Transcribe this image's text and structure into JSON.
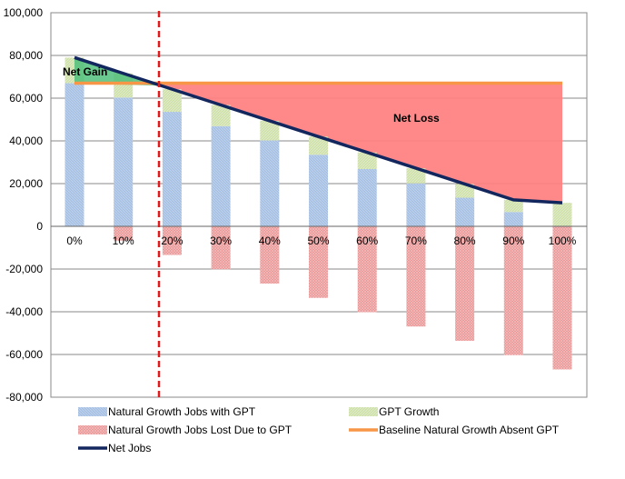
{
  "chart_data": {
    "type": "bar",
    "categories": [
      "0%",
      "10%",
      "20%",
      "30%",
      "40%",
      "50%",
      "60%",
      "70%",
      "80%",
      "90%",
      "100%"
    ],
    "ylim": [
      -80000,
      100000
    ],
    "ytick_labels": [
      "100,000",
      "80,000",
      "60,000",
      "40,000",
      "20,000",
      "0",
      "-20,000",
      "-40,000",
      "-60,000",
      "-80,000"
    ],
    "series": [
      {
        "name": "Natural Growth Jobs with GPT",
        "values": [
          67000,
          60300,
          53600,
          46900,
          40200,
          33500,
          26800,
          20100,
          13400,
          6700,
          0
        ],
        "color": "#9db8de"
      },
      {
        "name": "GPT Growth",
        "values": [
          12000,
          11300,
          10600,
          9900,
          9200,
          8500,
          7800,
          7100,
          6400,
          5700,
          11000
        ],
        "color": "#c8dba0"
      },
      {
        "name": "Natural Growth Jobs Lost Due to GPT",
        "values": [
          0,
          -6700,
          -13400,
          -20100,
          -26800,
          -33500,
          -40200,
          -46900,
          -53600,
          -60300,
          -67000
        ],
        "color": "#e88888"
      },
      {
        "name": "Baseline Natural Growth Absent GPT",
        "values": [
          67000,
          67000,
          67000,
          67000,
          67000,
          67000,
          67000,
          67000,
          67000,
          67000,
          67000
        ],
        "color": "#f79646"
      },
      {
        "name": "Net Jobs",
        "values": [
          79000,
          71600,
          64200,
          56800,
          49400,
          42000,
          34600,
          27200,
          19800,
          12400,
          11000
        ],
        "color": "#13275f"
      }
    ],
    "threshold_category": "15%",
    "annotations": {
      "net_gain": "Net Gain",
      "net_loss": "Net Loss"
    },
    "grid": true,
    "legend_position": "bottom"
  }
}
